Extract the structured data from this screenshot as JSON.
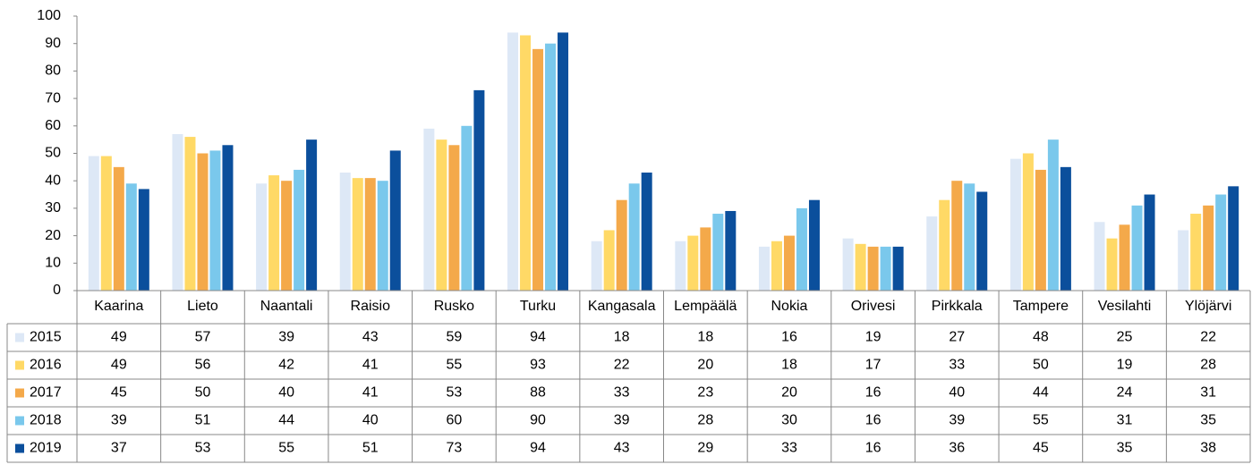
{
  "chart_data": {
    "type": "bar",
    "categories": [
      "Kaarina",
      "Lieto",
      "Naantali",
      "Raisio",
      "Rusko",
      "Turku",
      "Kangasala",
      "Lempäälä",
      "Nokia",
      "Orivesi",
      "Pirkkala",
      "Tampere",
      "Vesilahti",
      "Ylöjärvi"
    ],
    "series": [
      {
        "name": "2015",
        "color": "#dde8f6",
        "values": [
          49,
          57,
          39,
          43,
          59,
          94,
          18,
          18,
          16,
          19,
          27,
          48,
          25,
          22
        ]
      },
      {
        "name": "2016",
        "color": "#ffd966",
        "values": [
          49,
          56,
          42,
          41,
          55,
          93,
          22,
          20,
          18,
          17,
          33,
          50,
          19,
          28
        ]
      },
      {
        "name": "2017",
        "color": "#f4a94a",
        "values": [
          45,
          50,
          40,
          41,
          53,
          88,
          33,
          23,
          20,
          16,
          40,
          44,
          24,
          31
        ]
      },
      {
        "name": "2018",
        "color": "#7ac8ec",
        "values": [
          39,
          51,
          44,
          40,
          60,
          90,
          39,
          28,
          30,
          16,
          39,
          55,
          31,
          35
        ]
      },
      {
        "name": "2019",
        "color": "#0b4f9c",
        "values": [
          37,
          53,
          55,
          51,
          73,
          94,
          43,
          29,
          33,
          16,
          36,
          45,
          35,
          38
        ]
      }
    ],
    "ylim": [
      0,
      100
    ],
    "yticks": [
      0,
      10,
      20,
      30,
      40,
      50,
      60,
      70,
      80,
      90,
      100
    ],
    "grid": false
  }
}
